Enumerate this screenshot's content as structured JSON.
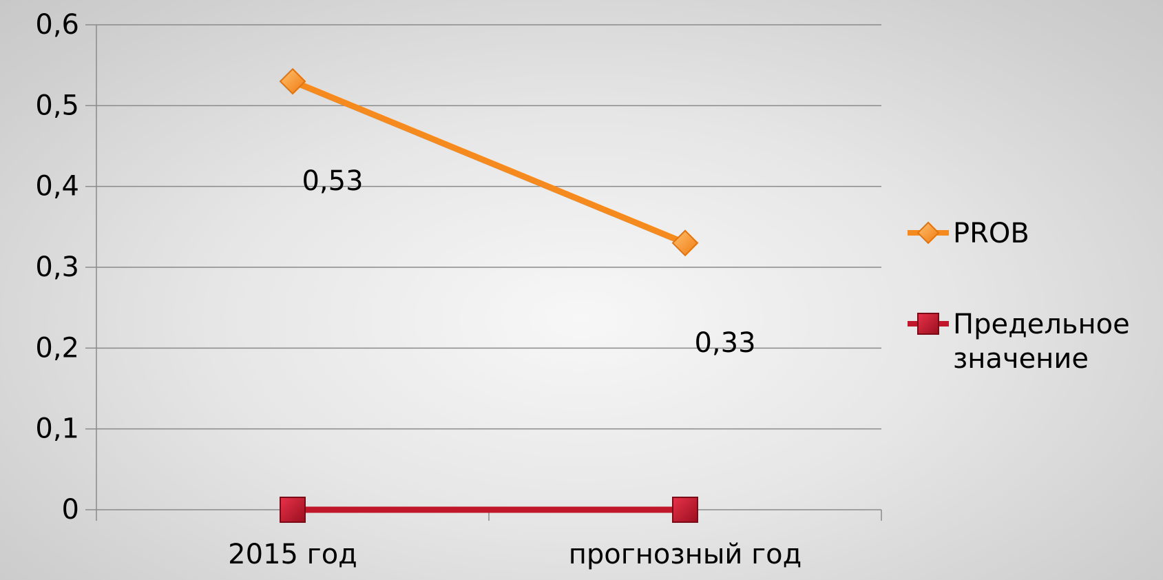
{
  "chart_data": {
    "type": "line",
    "categories": [
      "2015 год",
      "прогнозный год"
    ],
    "series": [
      {
        "name": "PROB",
        "values": [
          0.53,
          0.33
        ],
        "color": "#f58a1f",
        "marker": "diamond",
        "labels": [
          "0,53",
          "0,33"
        ]
      },
      {
        "name": "Предельное значение",
        "values": [
          0,
          0
        ],
        "color": "#c0182a",
        "marker": "square"
      }
    ],
    "ylim": [
      0,
      0.6
    ],
    "yticks": [
      0,
      0.1,
      0.2,
      0.3,
      0.4,
      0.5,
      0.6
    ],
    "ytick_labels": [
      "0",
      "0,1",
      "0,2",
      "0,3",
      "0,4",
      "0,5",
      "0,6"
    ],
    "grid": true,
    "legend_position": "right"
  }
}
